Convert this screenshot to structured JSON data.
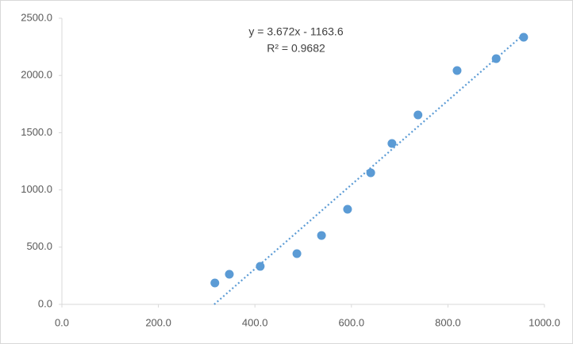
{
  "chart_data": {
    "type": "scatter",
    "x": [
      317,
      347,
      411,
      487,
      538,
      592,
      640,
      684,
      738,
      819,
      900,
      957
    ],
    "values": [
      187,
      263,
      332,
      443,
      602,
      831,
      1150,
      1406,
      1655,
      2043,
      2147,
      2334
    ],
    "color": "#5b9bd5",
    "trendline": {
      "type": "linear",
      "equation": "y = 3.672x - 1163.6",
      "r_squared": "R² = 0.9682"
    },
    "xlim": [
      0,
      1000
    ],
    "xticks": [
      {
        "value": 0,
        "label": "0.0"
      },
      {
        "value": 200,
        "label": "200.0"
      },
      {
        "value": 400,
        "label": "400.0"
      },
      {
        "value": 600,
        "label": "600.0"
      },
      {
        "value": 800,
        "label": "800.0"
      },
      {
        "value": 1000,
        "label": "1000.0"
      }
    ],
    "ylim": [
      0,
      2500
    ],
    "yticks": [
      {
        "value": 0,
        "label": "0.0"
      },
      {
        "value": 500,
        "label": "500.0"
      },
      {
        "value": 1000,
        "label": "1000.0"
      },
      {
        "value": 1500,
        "label": "1500.0"
      },
      {
        "value": 2000,
        "label": "2000.0"
      },
      {
        "value": 2500,
        "label": "2500.0"
      }
    ],
    "grid": false
  }
}
